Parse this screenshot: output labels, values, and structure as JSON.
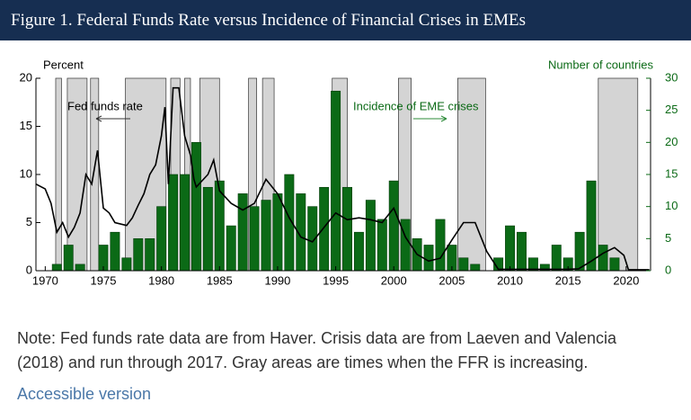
{
  "chart_data": {
    "type": "bar",
    "title": "Figure 1. Federal Funds Rate versus Incidence of Financial Crises in EMEs",
    "ylabel": "Percent",
    "y2label": "Number of countries",
    "xlim": [
      1969.2,
      2022.1
    ],
    "xticks": [
      1970,
      1975,
      1980,
      1985,
      1990,
      1995,
      2000,
      2005,
      2010,
      2015,
      2020
    ],
    "ylim": [
      0,
      20
    ],
    "yticks": [
      0,
      5,
      10,
      15,
      20
    ],
    "y2lim": [
      0,
      30
    ],
    "y2ticks": [
      0,
      5,
      10,
      15,
      20,
      25,
      30
    ],
    "grid": false,
    "shade_color": "#d4d4d4",
    "shaded_periods": [
      [
        1970.9,
        1971.4
      ],
      [
        1971.9,
        1973.6
      ],
      [
        1973.9,
        1974.6
      ],
      [
        1976.9,
        1980.4
      ],
      [
        1980.8,
        1981.6
      ],
      [
        1982.0,
        1982.5
      ],
      [
        1983.3,
        1985.0
      ],
      [
        1987.5,
        1988.2
      ],
      [
        1988.7,
        1989.7
      ],
      [
        1994.7,
        1996.0
      ],
      [
        2000.4,
        2001.5
      ],
      [
        2005.5,
        2007.9
      ],
      [
        2017.6,
        2021.0
      ]
    ],
    "series": [
      {
        "name": "Fed funds rate",
        "type": "line",
        "color": "#000000",
        "x": [
          1969.2,
          1970,
          1970.5,
          1971,
          1971.5,
          1972,
          1972.5,
          1973,
          1973.5,
          1974,
          1974.5,
          1975,
          1975.5,
          1976,
          1977,
          1977.5,
          1978,
          1978.5,
          1979,
          1979.5,
          1980,
          1980.3,
          1980.6,
          1981,
          1981.5,
          1982,
          1982.5,
          1982.8,
          1983,
          1984,
          1984.5,
          1985,
          1986,
          1987,
          1988,
          1989,
          1990,
          1991,
          1992,
          1993,
          1994,
          1995,
          1996,
          1997,
          1998,
          1999,
          2000,
          2001,
          2002,
          2003,
          2004,
          2005,
          2006,
          2007,
          2008,
          2009,
          2015,
          2015.9,
          2017,
          2018,
          2019,
          2019.8,
          2020.2,
          2022
        ],
        "values": [
          9,
          8.5,
          7,
          4,
          5,
          3.5,
          4.5,
          6,
          10,
          9,
          12.5,
          6.5,
          6,
          5,
          4.7,
          5.5,
          6.8,
          8,
          10,
          11,
          14,
          17,
          9,
          19,
          19,
          14,
          12,
          9.5,
          8.7,
          10,
          11.5,
          8.3,
          7,
          6.3,
          7,
          9.5,
          8,
          5.5,
          3.5,
          3,
          4.5,
          6,
          5.3,
          5.5,
          5.3,
          5,
          6.5,
          3.5,
          1.7,
          1,
          1.3,
          3.2,
          5,
          5,
          2,
          0.15,
          0.15,
          0.2,
          1,
          1.8,
          2.4,
          1.6,
          0.1,
          0.1
        ]
      },
      {
        "name": "Incidence of EME crises",
        "type": "bar",
        "axis": "y2",
        "color": "#0b6a16",
        "x": [
          1971,
          1972,
          1973,
          1974,
          1975,
          1976,
          1977,
          1978,
          1979,
          1980,
          1981,
          1982,
          1983,
          1984,
          1985,
          1986,
          1987,
          1988,
          1989,
          1990,
          1991,
          1992,
          1993,
          1994,
          1995,
          1996,
          1997,
          1998,
          1999,
          2000,
          2001,
          2002,
          2003,
          2004,
          2005,
          2006,
          2007,
          2008,
          2009,
          2010,
          2011,
          2012,
          2013,
          2014,
          2015,
          2016,
          2017,
          2018,
          2019
        ],
        "values": [
          1,
          4,
          1,
          0,
          4,
          6,
          2,
          5,
          5,
          10,
          15,
          15,
          20,
          13,
          14,
          7,
          12,
          10,
          11,
          12,
          15,
          12,
          10,
          13,
          28,
          13,
          6,
          11,
          8,
          14,
          8,
          5,
          4,
          8,
          4,
          2,
          1,
          0,
          2,
          7,
          6,
          2,
          1,
          4,
          2,
          6,
          14,
          4,
          2
        ]
      }
    ]
  },
  "note": "Note: Fed funds rate data are from Haver. Crisis data are from Laeven and Valencia (2018) and run through 2017. Gray areas are times when the FFR is increasing.",
  "link": "Accessible version"
}
